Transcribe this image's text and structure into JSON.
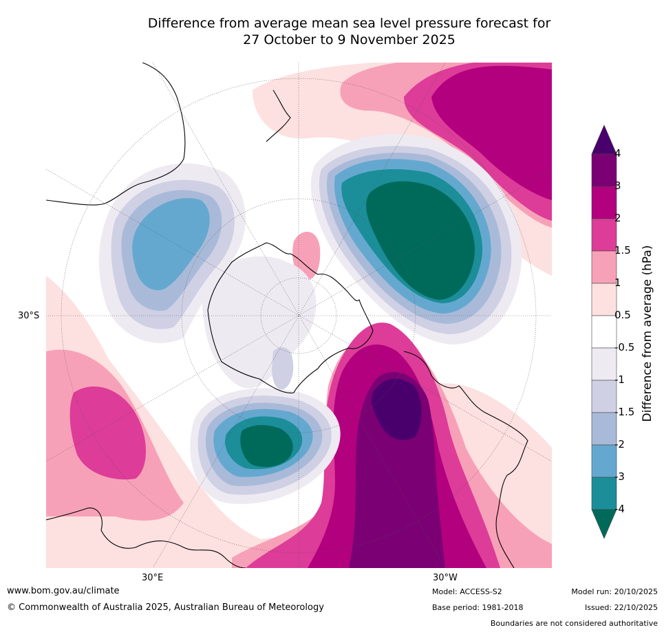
{
  "title_line1": "Difference from average mean sea level pressure forecast for",
  "title_line2": "27 October to 9 November 2025",
  "lat_label": "30°S",
  "lon_label_east": "30°E",
  "lon_label_west": "30°W",
  "colorbar": {
    "title": "Difference from average (hPa)",
    "levels": [
      "4",
      "3",
      "2",
      "1.5",
      "1",
      "0.5",
      "-0.5",
      "-1",
      "-1.5",
      "-2",
      "-3",
      "-4"
    ],
    "colors": [
      "#4a006c",
      "#7a0074",
      "#b2007e",
      "#dd3c98",
      "#f7a1b8",
      "#fde0e0",
      "#ffffff",
      "#eeeaf2",
      "#cfd0e4",
      "#a9bad9",
      "#65a8cf",
      "#1b8e99",
      "#006a5a"
    ]
  },
  "footer": {
    "website": "www.bom.gov.au/climate",
    "copyright": "© Commonwealth of Australia 2025, Australian Bureau of Meteorology",
    "model": "Model: ACCESS-S2",
    "base_period": "Base period: 1981-2018",
    "model_run": "Model run: 20/10/2025",
    "issued": "Issued: 22/10/2025",
    "disclaimer": "Boundaries are not considered authoritative"
  }
}
